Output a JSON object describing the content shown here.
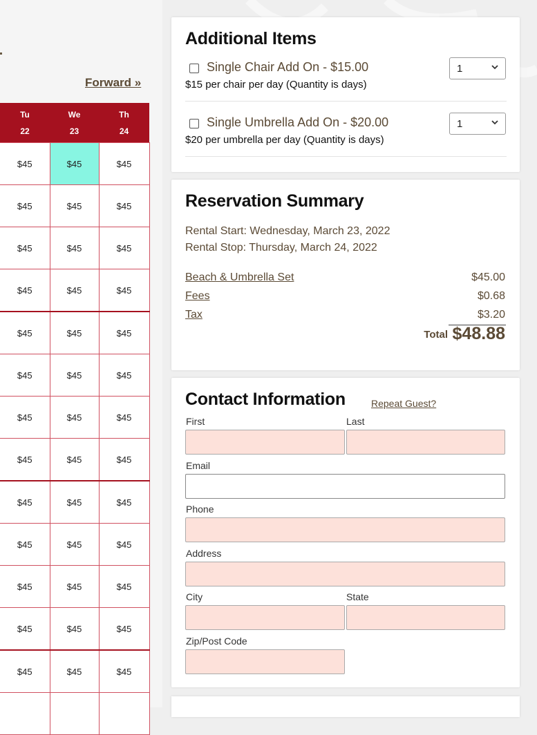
{
  "calendar": {
    "forward_label": "Forward »",
    "days": [
      {
        "dow": "Tu",
        "date": "22"
      },
      {
        "dow": "We",
        "date": "23"
      },
      {
        "dow": "Th",
        "date": "24"
      }
    ],
    "rows": [
      [
        "$45",
        "$45",
        "$45"
      ],
      [
        "$45",
        "$45",
        "$45"
      ],
      [
        "$45",
        "$45",
        "$45"
      ],
      [
        "$45",
        "$45",
        "$45"
      ],
      [
        "$45",
        "$45",
        "$45"
      ],
      [
        "$45",
        "$45",
        "$45"
      ],
      [
        "$45",
        "$45",
        "$45"
      ],
      [
        "$45",
        "$45",
        "$45"
      ],
      [
        "$45",
        "$45",
        "$45"
      ],
      [
        "$45",
        "$45",
        "$45"
      ],
      [
        "$45",
        "$45",
        "$45"
      ],
      [
        "$45",
        "$45",
        "$45"
      ],
      [
        "$45",
        "$45",
        "$45"
      ],
      [
        "",
        "",
        ""
      ]
    ],
    "selected_color": "#88f5e2",
    "header_color": "#a5111f"
  },
  "additional_items": {
    "title": "Additional Items",
    "items": [
      {
        "name": "Single Chair Add On - $15.00",
        "description": "$15 per chair per day (Quantity is days)",
        "quantity": "1"
      },
      {
        "name": "Single Umbrella Add On - $20.00",
        "description": "$20 per umbrella per day (Quantity is days)",
        "quantity": "1"
      }
    ]
  },
  "summary": {
    "title": "Reservation Summary",
    "rental_start": "Rental Start: Wednesday, March 23, 2022",
    "rental_stop": "Rental Stop: Thursday, March 24, 2022",
    "lines": [
      {
        "label": "Beach & Umbrella Set",
        "amount": "$45.00"
      },
      {
        "label": "Fees",
        "amount": "$0.68"
      },
      {
        "label": "Tax",
        "amount": "$3.20"
      }
    ],
    "total_label": "Total",
    "total_amount": "$48.88"
  },
  "contact": {
    "title": "Contact Information",
    "repeat_guest_label": "Repeat Guest?",
    "fields": {
      "first": "First",
      "last": "Last",
      "email": "Email",
      "phone": "Phone",
      "address": "Address",
      "city": "City",
      "state": "State",
      "zip": "Zip/Post Code"
    },
    "required_color": "#fde1da"
  }
}
